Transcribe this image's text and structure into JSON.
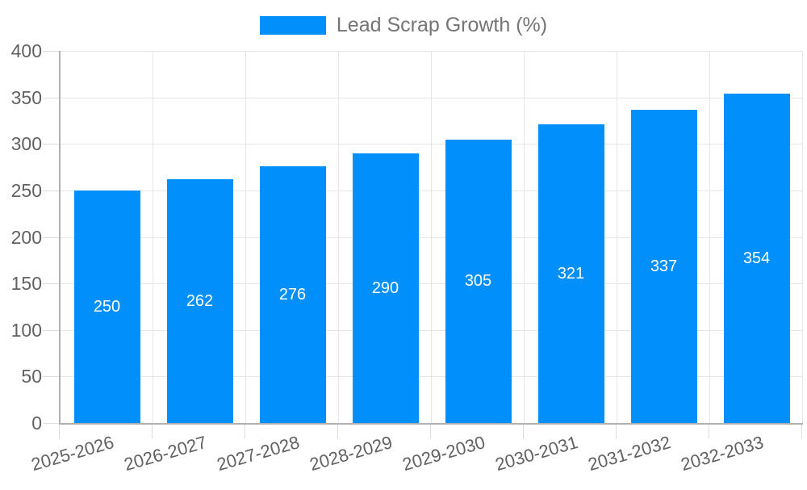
{
  "chart_data": {
    "type": "bar",
    "series_name": "Lead Scrap Growth (%)",
    "categories": [
      "2025-2026",
      "2026-2027",
      "2027-2028",
      "2028-2029",
      "2029-2030",
      "2030-2031",
      "2031-2032",
      "2032-2033"
    ],
    "values": [
      250,
      262,
      276,
      290,
      305,
      321,
      337,
      354
    ],
    "ylim": [
      0,
      400
    ],
    "ytick_step": 50,
    "ytick_labels": [
      "0",
      "50",
      "100",
      "150",
      "200",
      "250",
      "300",
      "350",
      "400"
    ],
    "grid": true,
    "legend_position": "top",
    "bar_color": "#008FFB",
    "bar_label_color": "#ffffff",
    "xlabel": "",
    "ylabel": ""
  },
  "legend": {
    "label": "Lead Scrap Growth (%)",
    "swatch_color": "#008FFB"
  }
}
